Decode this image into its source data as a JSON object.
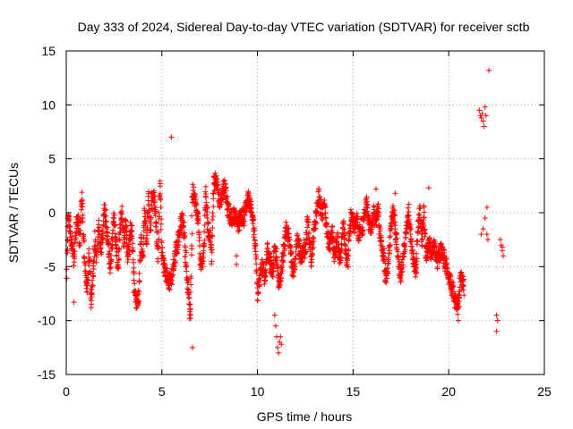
{
  "chart_data": {
    "type": "scatter",
    "title": "Day 333 of 2024, Sidereal Day-to-day VTEC variation (SDTVAR) for receiver sctb",
    "xlabel": "GPS time / hours",
    "ylabel": "SDTVAR / TECUs",
    "xlim": [
      0,
      25
    ],
    "ylim": [
      -15,
      15
    ],
    "xticks": [
      0,
      5,
      10,
      15,
      20,
      25
    ],
    "yticks": [
      -15,
      -10,
      -5,
      0,
      5,
      10,
      15
    ],
    "grid": true,
    "marker": "+",
    "color": "#ff0000",
    "series": [
      {
        "name": "SDTVAR",
        "trace": [
          [
            0.0,
            -7.0
          ],
          [
            0.1,
            -0.5
          ],
          [
            0.2,
            -1.5
          ],
          [
            0.3,
            -3.0
          ],
          [
            0.4,
            -4.5
          ],
          [
            0.5,
            -2.0
          ],
          [
            0.6,
            0.0
          ],
          [
            0.7,
            -3.0
          ],
          [
            0.8,
            1.5
          ],
          [
            0.9,
            -2.0
          ],
          [
            1.0,
            -5.5
          ],
          [
            1.1,
            -7.0
          ],
          [
            1.2,
            -4.0
          ],
          [
            1.3,
            -8.0
          ],
          [
            1.4,
            -6.0
          ],
          [
            1.5,
            -2.5
          ],
          [
            1.6,
            -4.0
          ],
          [
            1.7,
            -1.0
          ],
          [
            1.8,
            -3.5
          ],
          [
            1.9,
            -2.0
          ],
          [
            2.0,
            0.5
          ],
          [
            2.1,
            -1.5
          ],
          [
            2.2,
            -3.0
          ],
          [
            2.3,
            -5.0
          ],
          [
            2.4,
            -2.5
          ],
          [
            2.5,
            -0.5
          ],
          [
            2.6,
            -3.0
          ],
          [
            2.7,
            -5.5
          ],
          [
            2.8,
            -2.0
          ],
          [
            2.9,
            0.0
          ],
          [
            3.0,
            -2.5
          ],
          [
            3.1,
            -1.0
          ],
          [
            3.2,
            -4.0
          ],
          [
            3.3,
            -3.0
          ],
          [
            3.4,
            -1.0
          ],
          [
            3.5,
            -4.5
          ],
          [
            3.6,
            -8.0
          ],
          [
            3.7,
            -8.2
          ],
          [
            3.8,
            -7.5
          ],
          [
            3.9,
            -2.0
          ],
          [
            4.0,
            -4.5
          ],
          [
            4.1,
            0.5
          ],
          [
            4.2,
            -3.0
          ],
          [
            4.3,
            1.5
          ],
          [
            4.4,
            -2.0
          ],
          [
            4.5,
            2.0
          ],
          [
            4.6,
            1.0
          ],
          [
            4.7,
            -1.0
          ],
          [
            4.8,
            -4.0
          ],
          [
            4.9,
            2.5
          ],
          [
            5.0,
            -3.5
          ],
          [
            5.1,
            -5.0
          ],
          [
            5.2,
            -5.5
          ],
          [
            5.3,
            -6.0
          ],
          [
            5.4,
            -6.5
          ],
          [
            5.5,
            -6.0
          ],
          [
            5.6,
            -5.0
          ],
          [
            5.7,
            -4.0
          ],
          [
            5.8,
            -3.0
          ],
          [
            5.9,
            -2.0
          ],
          [
            6.0,
            -1.0
          ],
          [
            6.1,
            -0.5
          ],
          [
            6.2,
            -3.0
          ],
          [
            6.3,
            -5.5
          ],
          [
            6.4,
            -8.0
          ],
          [
            6.5,
            -9.0
          ],
          [
            6.6,
            2.0
          ],
          [
            6.7,
            1.5
          ],
          [
            6.8,
            0.5
          ],
          [
            6.9,
            -0.5
          ],
          [
            7.0,
            -4.0
          ],
          [
            7.1,
            -5.0
          ],
          [
            7.2,
            -3.0
          ],
          [
            7.3,
            2.0
          ],
          [
            7.4,
            -1.5
          ],
          [
            7.5,
            -2.0
          ],
          [
            7.6,
            -4.0
          ],
          [
            7.7,
            2.5
          ],
          [
            7.8,
            3.0
          ],
          [
            7.9,
            2.5
          ],
          [
            8.0,
            1.0
          ],
          [
            8.1,
            1.5
          ],
          [
            8.2,
            2.0
          ],
          [
            8.3,
            2.5
          ],
          [
            8.4,
            1.0
          ],
          [
            8.5,
            0.0
          ],
          [
            8.6,
            -0.5
          ],
          [
            8.7,
            -0.3
          ],
          [
            8.8,
            -0.2
          ],
          [
            8.9,
            -0.5
          ],
          [
            9.0,
            -1.0
          ],
          [
            9.1,
            -0.5
          ],
          [
            9.2,
            -0.3
          ],
          [
            9.3,
            -0.5
          ],
          [
            9.4,
            0.5
          ],
          [
            9.5,
            1.5
          ],
          [
            9.6,
            1.0
          ],
          [
            9.7,
            0.0
          ],
          [
            9.8,
            -1.5
          ],
          [
            9.9,
            -3.0
          ],
          [
            10.0,
            -7.5
          ],
          [
            10.1,
            -6.5
          ],
          [
            10.2,
            -5.0
          ],
          [
            10.3,
            -5.5
          ],
          [
            10.4,
            -6.0
          ],
          [
            10.5,
            -3.5
          ],
          [
            10.6,
            -4.0
          ],
          [
            10.7,
            -5.0
          ],
          [
            10.8,
            -5.5
          ],
          [
            10.9,
            -3.5
          ],
          [
            11.0,
            -4.0
          ],
          [
            11.1,
            -6.5
          ],
          [
            11.2,
            -6.0
          ],
          [
            11.3,
            -4.5
          ],
          [
            11.4,
            -3.0
          ],
          [
            11.5,
            -1.5
          ],
          [
            11.6,
            -2.0
          ],
          [
            11.7,
            -3.0
          ],
          [
            11.8,
            -5.0
          ],
          [
            11.9,
            -5.5
          ],
          [
            12.0,
            -4.0
          ],
          [
            12.1,
            -2.0
          ],
          [
            12.2,
            -3.5
          ],
          [
            12.3,
            -4.5
          ],
          [
            12.4,
            -3.0
          ],
          [
            12.5,
            -4.0
          ],
          [
            12.6,
            -0.5
          ],
          [
            12.7,
            -2.5
          ],
          [
            12.8,
            -4.5
          ],
          [
            12.9,
            -3.0
          ],
          [
            13.0,
            -1.0
          ],
          [
            13.1,
            0.0
          ],
          [
            13.2,
            1.5
          ],
          [
            13.3,
            0.5
          ],
          [
            13.4,
            0.0
          ],
          [
            13.5,
            1.0
          ],
          [
            13.6,
            -1.5
          ],
          [
            13.7,
            -2.5
          ],
          [
            13.8,
            -3.0
          ],
          [
            13.9,
            -1.5
          ],
          [
            14.0,
            -4.0
          ],
          [
            14.1,
            -3.5
          ],
          [
            14.2,
            -2.5
          ],
          [
            14.3,
            -4.5
          ],
          [
            14.4,
            -3.0
          ],
          [
            14.5,
            -1.0
          ],
          [
            14.6,
            -3.5
          ],
          [
            14.7,
            -5.0
          ],
          [
            14.8,
            -2.0
          ],
          [
            14.9,
            0.0
          ],
          [
            15.0,
            -1.0
          ],
          [
            15.1,
            -1.5
          ],
          [
            15.2,
            -0.5
          ],
          [
            15.3,
            -2.0
          ],
          [
            15.4,
            -1.0
          ],
          [
            15.5,
            -1.5
          ],
          [
            15.6,
            0.0
          ],
          [
            15.7,
            1.0
          ],
          [
            15.8,
            -0.5
          ],
          [
            15.9,
            -1.5
          ],
          [
            16.0,
            -1.0
          ],
          [
            16.1,
            0.0
          ],
          [
            16.2,
            -1.0
          ],
          [
            16.3,
            0.5
          ],
          [
            16.4,
            -2.0
          ],
          [
            16.5,
            -3.0
          ],
          [
            16.6,
            -4.0
          ],
          [
            16.7,
            -6.0
          ],
          [
            16.8,
            -5.5
          ],
          [
            16.9,
            -3.0
          ],
          [
            17.0,
            -1.0
          ],
          [
            17.1,
            0.5
          ],
          [
            17.2,
            -1.5
          ],
          [
            17.3,
            -3.0
          ],
          [
            17.4,
            -5.0
          ],
          [
            17.5,
            -6.0
          ],
          [
            17.6,
            -4.5
          ],
          [
            17.7,
            -3.0
          ],
          [
            17.8,
            -1.0
          ],
          [
            17.9,
            0.0
          ],
          [
            18.0,
            -2.0
          ],
          [
            18.1,
            -3.5
          ],
          [
            18.2,
            -5.0
          ],
          [
            18.3,
            -5.5
          ],
          [
            18.4,
            -1.0
          ],
          [
            18.5,
            0.0
          ],
          [
            18.6,
            -3.0
          ],
          [
            18.7,
            0.5
          ],
          [
            18.8,
            -4.0
          ],
          [
            18.9,
            -3.5
          ],
          [
            19.0,
            -3.0
          ],
          [
            19.1,
            -4.0
          ],
          [
            19.2,
            -3.0
          ],
          [
            19.3,
            -3.5
          ],
          [
            19.4,
            -4.5
          ],
          [
            19.5,
            -4.0
          ],
          [
            19.6,
            -3.5
          ],
          [
            19.7,
            -4.0
          ],
          [
            19.8,
            -4.5
          ],
          [
            19.9,
            -5.0
          ],
          [
            20.0,
            -6.0
          ],
          [
            20.1,
            -6.5
          ],
          [
            20.2,
            -7.0
          ],
          [
            20.3,
            -8.0
          ],
          [
            20.4,
            -8.5
          ],
          [
            20.5,
            -9.0
          ],
          [
            20.6,
            -6.0
          ],
          [
            20.7,
            -6.5
          ],
          [
            20.8,
            -7.0
          ]
        ],
        "outliers": [
          [
            5.5,
            7.0
          ],
          [
            6.6,
            -12.5
          ],
          [
            8.9,
            -4.0
          ],
          [
            8.9,
            -4.8
          ],
          [
            10.9,
            -9.5
          ],
          [
            10.95,
            -10.5
          ],
          [
            11.0,
            -11.5
          ],
          [
            11.05,
            -12.5
          ],
          [
            11.1,
            -13.0
          ],
          [
            11.15,
            -12.0
          ],
          [
            11.2,
            -11.5
          ],
          [
            11.25,
            -12.2
          ],
          [
            16.2,
            2.2
          ],
          [
            17.2,
            1.8
          ],
          [
            18.95,
            2.3
          ],
          [
            20.5,
            -10.0
          ],
          [
            21.6,
            9.5
          ],
          [
            21.65,
            9.0
          ],
          [
            21.7,
            8.8
          ],
          [
            21.75,
            9.2
          ],
          [
            21.8,
            8.5
          ],
          [
            21.85,
            8.0
          ],
          [
            21.9,
            9.8
          ],
          [
            21.95,
            9.0
          ],
          [
            21.7,
            -2.0
          ],
          [
            21.8,
            -1.5
          ],
          [
            21.9,
            -0.5
          ],
          [
            22.0,
            0.5
          ],
          [
            22.05,
            -2.5
          ],
          [
            22.0,
            -2.0
          ],
          [
            22.1,
            13.2
          ],
          [
            22.5,
            -9.5
          ],
          [
            22.55,
            -10.0
          ],
          [
            22.5,
            -11.0
          ],
          [
            22.7,
            -2.5
          ],
          [
            22.75,
            -3.0
          ],
          [
            22.8,
            -3.5
          ],
          [
            22.85,
            -4.0
          ],
          [
            22.8,
            -3.2
          ],
          [
            0.4,
            -8.3
          ],
          [
            1.3,
            -8.8
          ],
          [
            6.5,
            -9.5
          ],
          [
            6.45,
            -9.8
          ]
        ]
      }
    ]
  }
}
